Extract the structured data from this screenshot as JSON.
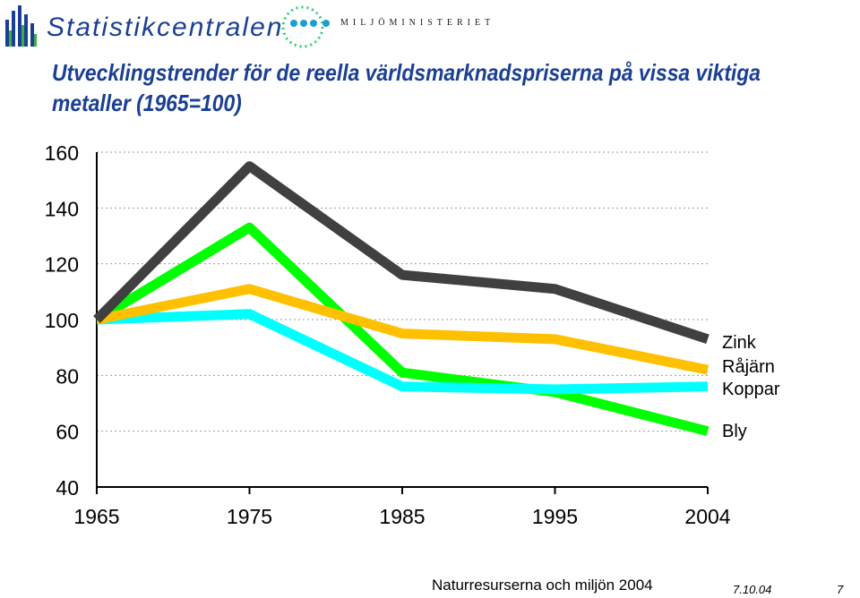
{
  "header": {
    "brand_name": "Statistikcentralen",
    "ministry_name": "MILJÖMINISTERIET"
  },
  "title": "Utvecklingstrender för de reella världsmarknadspriserna på vissa viktiga metaller (1965=100)",
  "chart_data": {
    "type": "line",
    "title": "Utvecklingstrender för de reella världsmarknadspriserna på vissa viktiga metaller (1965=100)",
    "x": [
      "1965",
      "1975",
      "1985",
      "1995",
      "2004"
    ],
    "ylim": [
      40,
      160
    ],
    "yticks": [
      160,
      140,
      120,
      100,
      80,
      60,
      40
    ],
    "grid": true,
    "series": [
      {
        "name": "Zink",
        "color": "#404040",
        "values": [
          100,
          155,
          116,
          111,
          93
        ]
      },
      {
        "name": "Råjärn",
        "color": "#ffc000",
        "values": [
          100,
          111,
          95,
          93,
          82
        ]
      },
      {
        "name": "Koppar",
        "color": "#00ffff",
        "values": [
          100,
          102,
          76,
          75,
          76
        ]
      },
      {
        "name": "Bly",
        "color": "#00ff00",
        "values": [
          100,
          133,
          81,
          74,
          60
        ]
      }
    ]
  },
  "footer": {
    "text": "Naturresurserna och miljön 2004",
    "date": "7.10.04",
    "page": "7"
  }
}
